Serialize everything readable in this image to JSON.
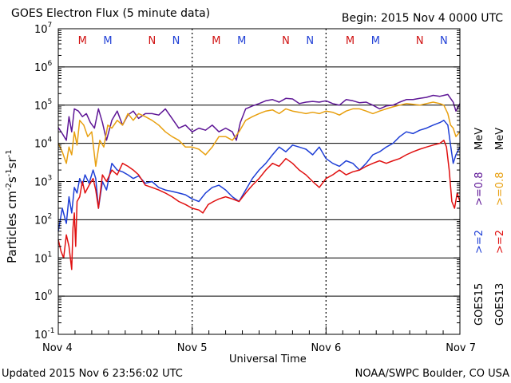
{
  "header": {
    "title": "GOES Electron Flux (5 minute data)",
    "begin": "Begin: 2015 Nov 4 0000 UTC"
  },
  "footer": {
    "updated": "Updated 2015 Nov  6 23:56:02 UTC",
    "credit": "NOAA/SWPC Boulder, CO USA"
  },
  "colors": {
    "goes15_ge2": "#1f3fd6",
    "goes15_ge08": "#5e1696",
    "goes13_ge2": "#e01010",
    "goes13_ge08": "#e8a010",
    "m_marker": "#d01010",
    "n_marker": "#1f3fd6"
  },
  "chart_data": {
    "type": "line",
    "x_axis": {
      "label": "Universal Time",
      "ticks": [
        "Nov 4",
        "Nov 5",
        "Nov 6",
        "Nov 7"
      ],
      "range_days": [
        0,
        3
      ]
    },
    "y_axis": {
      "label": "Particles cm⁻²s⁻¹sr⁻¹",
      "scale": "log",
      "range_exp": [
        -1,
        7
      ],
      "tick_exps": [
        -1,
        0,
        1,
        2,
        3,
        4,
        5,
        6,
        7
      ]
    },
    "dashed_threshold": 1000,
    "grid": "horizontal lines at each decade, dotted day separators",
    "legend": {
      "placement": "right-vertical",
      "entries": [
        {
          "text": "GOES15",
          "color": "#000000"
        },
        {
          "text": ">=2",
          "color": "#1f3fd6"
        },
        {
          "text": ">=0.8",
          "color": "#5e1696"
        },
        {
          "text": "MeV",
          "color": "#000000"
        },
        {
          "text": "GOES13",
          "color": "#000000"
        },
        {
          "text": ">=2",
          "color": "#e01010"
        },
        {
          "text": ">=0.8",
          "color": "#e8a010"
        },
        {
          "text": "MeV",
          "color": "#000000"
        }
      ]
    },
    "markers": [
      {
        "day": 0.18,
        "label": "M",
        "color": "m"
      },
      {
        "day": 0.37,
        "label": "M",
        "color": "n"
      },
      {
        "day": 0.7,
        "label": "N",
        "color": "m"
      },
      {
        "day": 0.88,
        "label": "N",
        "color": "n"
      },
      {
        "day": 1.18,
        "label": "M",
        "color": "m"
      },
      {
        "day": 1.37,
        "label": "M",
        "color": "n"
      },
      {
        "day": 1.7,
        "label": "N",
        "color": "m"
      },
      {
        "day": 1.88,
        "label": "N",
        "color": "n"
      },
      {
        "day": 2.18,
        "label": "M",
        "color": "m"
      },
      {
        "day": 2.37,
        "label": "M",
        "color": "n"
      },
      {
        "day": 2.7,
        "label": "N",
        "color": "m"
      },
      {
        "day": 2.88,
        "label": "N",
        "color": "n"
      }
    ],
    "series": [
      {
        "name": "GOES15 >=0.8 MeV",
        "color": "#5e1696",
        "x": [
          0.0,
          0.03,
          0.06,
          0.08,
          0.1,
          0.12,
          0.15,
          0.18,
          0.21,
          0.24,
          0.27,
          0.3,
          0.33,
          0.36,
          0.4,
          0.44,
          0.48,
          0.52,
          0.56,
          0.6,
          0.65,
          0.7,
          0.75,
          0.8,
          0.85,
          0.9,
          0.95,
          1.0,
          1.05,
          1.1,
          1.15,
          1.2,
          1.25,
          1.3,
          1.33,
          1.36,
          1.4,
          1.45,
          1.5,
          1.55,
          1.6,
          1.65,
          1.7,
          1.75,
          1.8,
          1.85,
          1.9,
          1.95,
          2.0,
          2.05,
          2.1,
          2.15,
          2.2,
          2.25,
          2.3,
          2.35,
          2.4,
          2.45,
          2.5,
          2.55,
          2.6,
          2.65,
          2.7,
          2.75,
          2.8,
          2.85,
          2.88,
          2.91,
          2.93,
          2.95,
          2.97,
          3.0
        ],
        "y": [
          26000,
          18000,
          12000,
          50000,
          20000,
          80000,
          70000,
          50000,
          60000,
          35000,
          25000,
          80000,
          35000,
          12000,
          40000,
          70000,
          30000,
          55000,
          70000,
          45000,
          60000,
          60000,
          55000,
          80000,
          45000,
          25000,
          30000,
          20000,
          25000,
          22000,
          30000,
          20000,
          25000,
          20000,
          12000,
          35000,
          80000,
          95000,
          110000,
          130000,
          140000,
          120000,
          150000,
          145000,
          110000,
          120000,
          125000,
          120000,
          130000,
          110000,
          100000,
          140000,
          130000,
          115000,
          120000,
          100000,
          80000,
          95000,
          100000,
          120000,
          140000,
          140000,
          150000,
          160000,
          180000,
          170000,
          180000,
          190000,
          150000,
          120000,
          70000,
          110000
        ]
      },
      {
        "name": "GOES13 >=0.8 MeV",
        "color": "#e8a010",
        "x": [
          0.0,
          0.03,
          0.06,
          0.08,
          0.1,
          0.12,
          0.14,
          0.16,
          0.19,
          0.22,
          0.25,
          0.28,
          0.31,
          0.34,
          0.37,
          0.4,
          0.44,
          0.48,
          0.52,
          0.56,
          0.6,
          0.65,
          0.7,
          0.75,
          0.8,
          0.85,
          0.9,
          0.95,
          1.0,
          1.05,
          1.1,
          1.15,
          1.2,
          1.25,
          1.3,
          1.35,
          1.4,
          1.45,
          1.5,
          1.55,
          1.6,
          1.65,
          1.7,
          1.75,
          1.8,
          1.85,
          1.9,
          1.95,
          2.0,
          2.05,
          2.1,
          2.15,
          2.2,
          2.25,
          2.3,
          2.35,
          2.4,
          2.45,
          2.5,
          2.55,
          2.6,
          2.65,
          2.7,
          2.75,
          2.8,
          2.85,
          2.88,
          2.91,
          2.93,
          2.95,
          2.97,
          3.0
        ],
        "y": [
          10000,
          6000,
          3000,
          8000,
          5000,
          20000,
          9000,
          40000,
          30000,
          15000,
          20000,
          2500,
          12000,
          8000,
          30000,
          25000,
          40000,
          30000,
          60000,
          40000,
          60000,
          50000,
          40000,
          30000,
          20000,
          15000,
          12000,
          8000,
          8000,
          7000,
          5000,
          8000,
          15000,
          15000,
          12000,
          20000,
          40000,
          50000,
          60000,
          70000,
          75000,
          60000,
          80000,
          70000,
          65000,
          60000,
          65000,
          60000,
          70000,
          65000,
          55000,
          70000,
          80000,
          80000,
          70000,
          60000,
          70000,
          80000,
          90000,
          100000,
          110000,
          105000,
          100000,
          110000,
          120000,
          110000,
          100000,
          60000,
          30000,
          25000,
          15000,
          20000
        ]
      },
      {
        "name": "GOES15 >=2 MeV",
        "color": "#1f3fd6",
        "x": [
          0.0,
          0.03,
          0.06,
          0.08,
          0.1,
          0.12,
          0.14,
          0.16,
          0.18,
          0.2,
          0.23,
          0.26,
          0.28,
          0.3,
          0.33,
          0.36,
          0.4,
          0.44,
          0.48,
          0.52,
          0.56,
          0.6,
          0.65,
          0.7,
          0.75,
          0.8,
          0.85,
          0.9,
          0.95,
          1.0,
          1.05,
          1.1,
          1.15,
          1.2,
          1.25,
          1.3,
          1.35,
          1.4,
          1.45,
          1.5,
          1.55,
          1.6,
          1.65,
          1.7,
          1.75,
          1.8,
          1.85,
          1.9,
          1.95,
          2.0,
          2.05,
          2.1,
          2.15,
          2.2,
          2.25,
          2.3,
          2.35,
          2.4,
          2.45,
          2.5,
          2.55,
          2.6,
          2.65,
          2.7,
          2.75,
          2.8,
          2.85,
          2.88,
          2.91,
          2.93,
          2.95,
          2.97,
          3.0
        ],
        "y": [
          50,
          200,
          80,
          400,
          150,
          700,
          500,
          1200,
          800,
          1500,
          900,
          2000,
          1200,
          200,
          1000,
          600,
          3000,
          2000,
          1800,
          1500,
          1200,
          1400,
          900,
          1000,
          700,
          600,
          550,
          500,
          450,
          350,
          300,
          500,
          700,
          800,
          600,
          400,
          300,
          600,
          1200,
          2000,
          3000,
          5000,
          8000,
          6000,
          9000,
          8000,
          7000,
          5000,
          8000,
          4000,
          3000,
          2500,
          3500,
          3000,
          2000,
          3000,
          5000,
          6000,
          8000,
          10000,
          15000,
          20000,
          18000,
          22000,
          25000,
          30000,
          35000,
          40000,
          30000,
          9000,
          3000,
          5000,
          8000
        ]
      },
      {
        "name": "GOES13 >=2 MeV",
        "color": "#e01010",
        "x": [
          0.0,
          0.02,
          0.04,
          0.06,
          0.08,
          0.1,
          0.11,
          0.12,
          0.13,
          0.14,
          0.16,
          0.18,
          0.2,
          0.23,
          0.26,
          0.28,
          0.3,
          0.33,
          0.36,
          0.4,
          0.44,
          0.48,
          0.52,
          0.56,
          0.6,
          0.65,
          0.7,
          0.75,
          0.8,
          0.85,
          0.9,
          0.95,
          1.0,
          1.05,
          1.08,
          1.12,
          1.16,
          1.2,
          1.25,
          1.3,
          1.35,
          1.4,
          1.45,
          1.5,
          1.55,
          1.6,
          1.65,
          1.7,
          1.75,
          1.8,
          1.85,
          1.9,
          1.95,
          2.0,
          2.05,
          2.1,
          2.15,
          2.2,
          2.25,
          2.3,
          2.35,
          2.4,
          2.45,
          2.5,
          2.55,
          2.6,
          2.65,
          2.7,
          2.75,
          2.8,
          2.85,
          2.88,
          2.9,
          2.92,
          2.94,
          2.96,
          2.98,
          3.0
        ],
        "y": [
          30,
          15,
          10,
          40,
          20,
          5,
          60,
          150,
          20,
          300,
          400,
          1000,
          500,
          800,
          1200,
          600,
          200,
          1500,
          1000,
          2000,
          1500,
          3000,
          2500,
          2000,
          1500,
          800,
          700,
          600,
          500,
          400,
          300,
          250,
          200,
          180,
          150,
          250,
          300,
          350,
          400,
          350,
          300,
          500,
          800,
          1200,
          2000,
          3000,
          2500,
          4000,
          3000,
          2000,
          1500,
          1000,
          700,
          1200,
          1500,
          2000,
          1500,
          1800,
          2000,
          2500,
          3000,
          3500,
          3000,
          3500,
          4000,
          5000,
          6000,
          7000,
          8000,
          9000,
          10000,
          12000,
          8000,
          2000,
          300,
          200,
          500,
          300
        ]
      }
    ]
  },
  "axis_texts": {
    "ylabel_main": "Particles cm",
    "ylabel_sup1": "-2",
    "ylabel_mid1": "s",
    "ylabel_sup2": "-1",
    "ylabel_mid2": "sr",
    "ylabel_sup3": "-1"
  }
}
